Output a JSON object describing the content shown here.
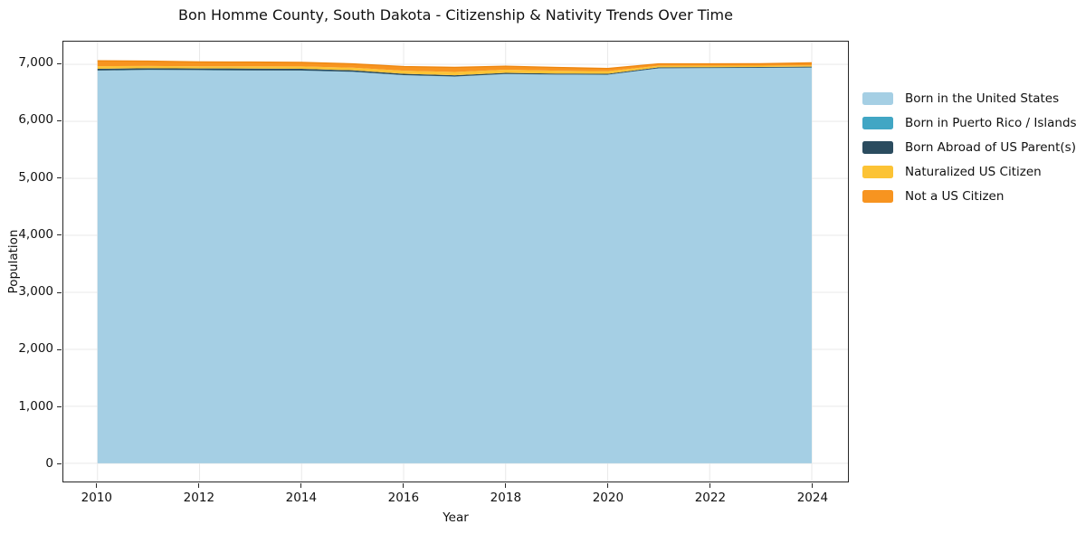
{
  "chart_data": {
    "type": "area",
    "stacked": true,
    "title": "Bon Homme County, South Dakota - Citizenship & Nativity Trends Over Time",
    "xlabel": "Year",
    "ylabel": "Population",
    "grid": true,
    "legend_position": "right-outside",
    "x": [
      2010,
      2011,
      2012,
      2013,
      2014,
      2015,
      2016,
      2017,
      2018,
      2019,
      2020,
      2021,
      2022,
      2023,
      2024
    ],
    "series": [
      {
        "name": "Born in the United States",
        "color": "#a5cfe4",
        "values": [
          6890,
          6902,
          6898,
          6892,
          6890,
          6868,
          6810,
          6785,
          6830,
          6820,
          6818,
          6930,
          6934,
          6938,
          6944
        ]
      },
      {
        "name": "Born in Puerto Rico / Islands",
        "color": "#41a6c4",
        "values": [
          4,
          4,
          4,
          4,
          4,
          3,
          3,
          3,
          3,
          3,
          3,
          3,
          3,
          3,
          3
        ]
      },
      {
        "name": "Born Abroad of US Parent(s)",
        "color": "#2b4c5f",
        "values": [
          30,
          28,
          28,
          32,
          30,
          26,
          24,
          22,
          20,
          18,
          16,
          16,
          15,
          15,
          14
        ]
      },
      {
        "name": "Naturalized US Citizen",
        "color": "#fcc335",
        "values": [
          45,
          40,
          38,
          40,
          42,
          46,
          52,
          58,
          54,
          48,
          44,
          28,
          26,
          24,
          22
        ]
      },
      {
        "name": "Not a US Citizen",
        "color": "#f79420",
        "values": [
          95,
          85,
          76,
          74,
          70,
          68,
          74,
          80,
          62,
          58,
          48,
          34,
          32,
          32,
          45
        ]
      }
    ],
    "xticks": [
      2010,
      2012,
      2014,
      2016,
      2018,
      2020,
      2022,
      2024
    ],
    "xtick_labels": [
      "2010",
      "2012",
      "2014",
      "2016",
      "2018",
      "2020",
      "2022",
      "2024"
    ],
    "yticks": [
      0,
      1000,
      2000,
      3000,
      4000,
      5000,
      6000,
      7000
    ],
    "ytick_labels": [
      "0",
      "1,000",
      "2,000",
      "3,000",
      "4,000",
      "5,000",
      "6,000",
      "7,000"
    ],
    "xlim": [
      2009.33,
      2024.71
    ],
    "ylim": [
      -320,
      7400
    ],
    "colors": {
      "grid": "#e9e9e9",
      "spine": "#262626",
      "stack_top_edge": "#ee860e",
      "background": "#ffffff"
    }
  }
}
